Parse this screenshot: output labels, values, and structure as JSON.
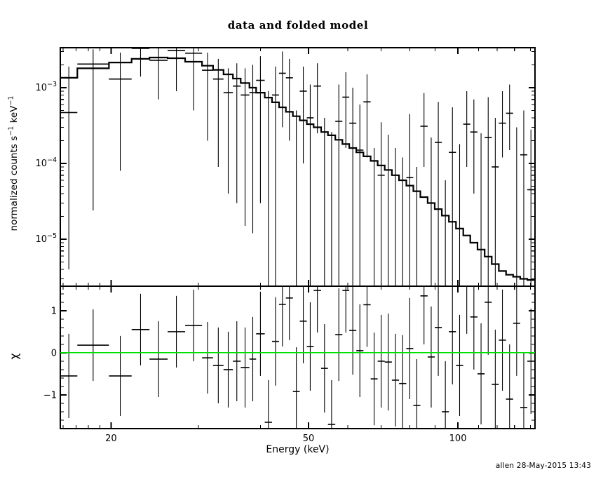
{
  "title": "data and folded model",
  "footer": "allen 28-May-2015 13:43",
  "y_axis_label": {
    "p1": "normalized counts s",
    "s1": "−1",
    "p2": " keV",
    "s2": "−1"
  },
  "colors": {
    "foreground": "#000000",
    "background": "#ffffff",
    "zero_line": "#00e000"
  },
  "chart_data": {
    "type": "line",
    "title": "data and folded model",
    "xlabel": "Energy (keV)",
    "xscale": "log",
    "xlim": [
      15.8,
      143.0
    ],
    "xticks": [
      {
        "v": 20,
        "label": "20"
      },
      {
        "v": 50,
        "label": "50"
      },
      {
        "v": 100,
        "label": "100"
      }
    ],
    "x_minor_ticks": [
      16,
      17,
      18,
      19,
      30,
      40,
      60,
      70,
      80,
      90,
      110,
      120,
      130,
      140
    ],
    "grid": false,
    "legend": "none",
    "panels": [
      {
        "name": "spectrum",
        "ylabel": "normalized counts s^-1 keV^-1",
        "yscale": "log",
        "ylim": [
          2.4e-06,
          0.00337
        ],
        "yticks": [
          {
            "v": 0.001,
            "mantissa": "10",
            "exponent": "−3"
          },
          {
            "v": 0.0001,
            "mantissa": "10",
            "exponent": "−4"
          },
          {
            "v": 1e-05,
            "mantissa": "10",
            "exponent": "−5"
          }
        ]
      },
      {
        "name": "residuals",
        "ylabel": "χ",
        "yscale": "linear",
        "ylim": [
          -1.8,
          1.58
        ],
        "yticks": [
          {
            "v": 1,
            "label": "1"
          },
          {
            "v": 0,
            "label": "0"
          },
          {
            "v": -1,
            "label": "−1"
          }
        ],
        "y_minor_step": 0.2,
        "zero_line": {
          "v": 0,
          "color": "#00e000"
        }
      }
    ],
    "bin_edges_keV": [
      15.8,
      17.1,
      19.8,
      22.0,
      23.9,
      26.0,
      28.2,
      30.5,
      32.1,
      33.7,
      35.2,
      36.5,
      38.0,
      39.2,
      40.8,
      42.2,
      43.6,
      45.0,
      46.5,
      48.0,
      49.6,
      51.2,
      53.0,
      54.7,
      56.6,
      58.5,
      60.4,
      62.4,
      64.5,
      66.7,
      68.9,
      71.2,
      73.6,
      76.1,
      78.7,
      81.3,
      84.0,
      86.9,
      89.8,
      92.8,
      95.9,
      99.1,
      102.5,
      105.9,
      109.5,
      113.2,
      117.0,
      120.9,
      125.0,
      129.2,
      133.5,
      138.0,
      142.7
    ],
    "series": [
      {
        "name": "folded model",
        "style": "step-histogram",
        "panel": "spectrum",
        "values": [
          0.00135,
          0.0018,
          0.00215,
          0.0024,
          0.0025,
          0.00245,
          0.0022,
          0.00195,
          0.00172,
          0.0015,
          0.00132,
          0.00115,
          0.001,
          0.00086,
          0.00074,
          0.00064,
          0.00055,
          0.00048,
          0.00042,
          0.00037,
          0.00033,
          0.0003,
          0.00026,
          0.000235,
          0.000205,
          0.00018,
          0.00016,
          0.00014,
          0.000124,
          0.000108,
          9.4e-05,
          8.2e-05,
          7e-05,
          6e-05,
          5.1e-05,
          4.3e-05,
          3.6e-05,
          3e-05,
          2.5e-05,
          2.05e-05,
          1.7e-05,
          1.38e-05,
          1.12e-05,
          9e-06,
          7.3e-06,
          5.9e-06,
          4.7e-06,
          3.8e-06,
          3.4e-06,
          3.2e-06,
          3e-06,
          2.9e-06
        ]
      },
      {
        "name": "data",
        "style": "errorbar-cross",
        "panel": "spectrum",
        "values": [
          0.00047,
          0.00205,
          0.0013,
          0.0033,
          0.0023,
          0.0031,
          0.00285,
          0.0017,
          0.0013,
          0.00086,
          0.00105,
          0.0008,
          0.00086,
          0.00125,
          null,
          0.0008,
          0.00155,
          0.00135,
          null,
          0.0009,
          0.0004,
          0.00105,
          null,
          null,
          0.00036,
          0.00075,
          0.00034,
          0.00015,
          0.00065,
          null,
          7e-05,
          null,
          null,
          null,
          6.5e-05,
          null,
          0.00031,
          null,
          0.00019,
          null,
          0.00014,
          null,
          0.00033,
          0.00026,
          null,
          0.00022,
          9e-05,
          0.00034,
          0.00046,
          null,
          0.00013,
          4.5e-05
        ],
        "err_top": [
          0.0019,
          0.0032,
          0.0029,
          0.0046,
          0.0033,
          0.0042,
          0.0039,
          0.0029,
          0.0024,
          0.0018,
          0.0021,
          0.0018,
          0.002,
          0.0026,
          0.0009,
          0.0019,
          0.003,
          0.0024,
          0.0005,
          0.0019,
          0.0011,
          0.0021,
          0.0004,
          0.00026,
          0.0011,
          0.0016,
          0.001,
          0.0006,
          0.0015,
          0.00016,
          0.00035,
          0.00024,
          0.00016,
          0.00012,
          0.00045,
          9e-05,
          0.00085,
          0.00022,
          0.00065,
          6e-05,
          0.00055,
          0.00018,
          0.0009,
          0.0007,
          0.00025,
          0.00075,
          0.0004,
          0.0009,
          0.0011,
          0.0003,
          0.0005,
          0.00028
        ],
        "err_bot": [
          4e-06,
          2.4e-05,
          8e-05,
          0.0014,
          0.0007,
          0.0009,
          0.0005,
          0.0002,
          9e-05,
          4e-05,
          3e-05,
          1.5e-05,
          1.2e-05,
          3e-05,
          1e-06,
          1e-06,
          0.0003,
          0.0002,
          1e-06,
          0.0001,
          1e-06,
          0.00025,
          1e-06,
          1e-06,
          1e-06,
          0.00016,
          1e-06,
          1e-06,
          0.00012,
          1e-06,
          1e-06,
          1e-06,
          1e-06,
          1e-06,
          1e-06,
          1e-06,
          9e-05,
          1e-06,
          1e-06,
          1e-06,
          1e-06,
          1e-06,
          9e-05,
          4e-05,
          1e-06,
          1e-06,
          1e-06,
          0.00012,
          0.00015,
          1e-06,
          1e-06,
          1e-06
        ]
      },
      {
        "name": "chi residuals",
        "style": "errorbar-cross",
        "panel": "residuals",
        "values": [
          -0.55,
          0.18,
          -0.55,
          0.55,
          -0.15,
          0.5,
          0.65,
          -0.12,
          -0.3,
          -0.4,
          -0.2,
          -0.35,
          -0.15,
          0.45,
          -1.65,
          0.27,
          1.15,
          1.3,
          -0.92,
          0.75,
          0.15,
          1.48,
          -0.37,
          -1.7,
          0.43,
          1.48,
          0.53,
          0.05,
          1.14,
          -0.62,
          -0.2,
          -0.22,
          -0.65,
          -0.73,
          0.1,
          -1.25,
          1.35,
          -0.1,
          0.6,
          -1.4,
          0.5,
          -0.3,
          1.6,
          0.85,
          -0.5,
          1.2,
          -0.75,
          0.3,
          -1.1,
          0.7,
          -1.3,
          -0.2
        ],
        "err": [
          1.0,
          0.85,
          0.95,
          0.85,
          0.9,
          0.85,
          0.85,
          0.85,
          0.9,
          0.9,
          0.95,
          0.95,
          1.0,
          1.0,
          1.0,
          1.05,
          1.0,
          1.0,
          1.05,
          1.0,
          1.05,
          1.0,
          1.05,
          1.05,
          1.1,
          1.0,
          1.05,
          1.1,
          1.0,
          1.1,
          1.1,
          1.15,
          1.1,
          1.15,
          1.2,
          1.1,
          1.15,
          1.2,
          1.15,
          1.2,
          1.25,
          1.2,
          1.15,
          1.25,
          1.2,
          1.25,
          1.3,
          1.2,
          1.3,
          1.25,
          1.3,
          1.25
        ]
      }
    ]
  }
}
